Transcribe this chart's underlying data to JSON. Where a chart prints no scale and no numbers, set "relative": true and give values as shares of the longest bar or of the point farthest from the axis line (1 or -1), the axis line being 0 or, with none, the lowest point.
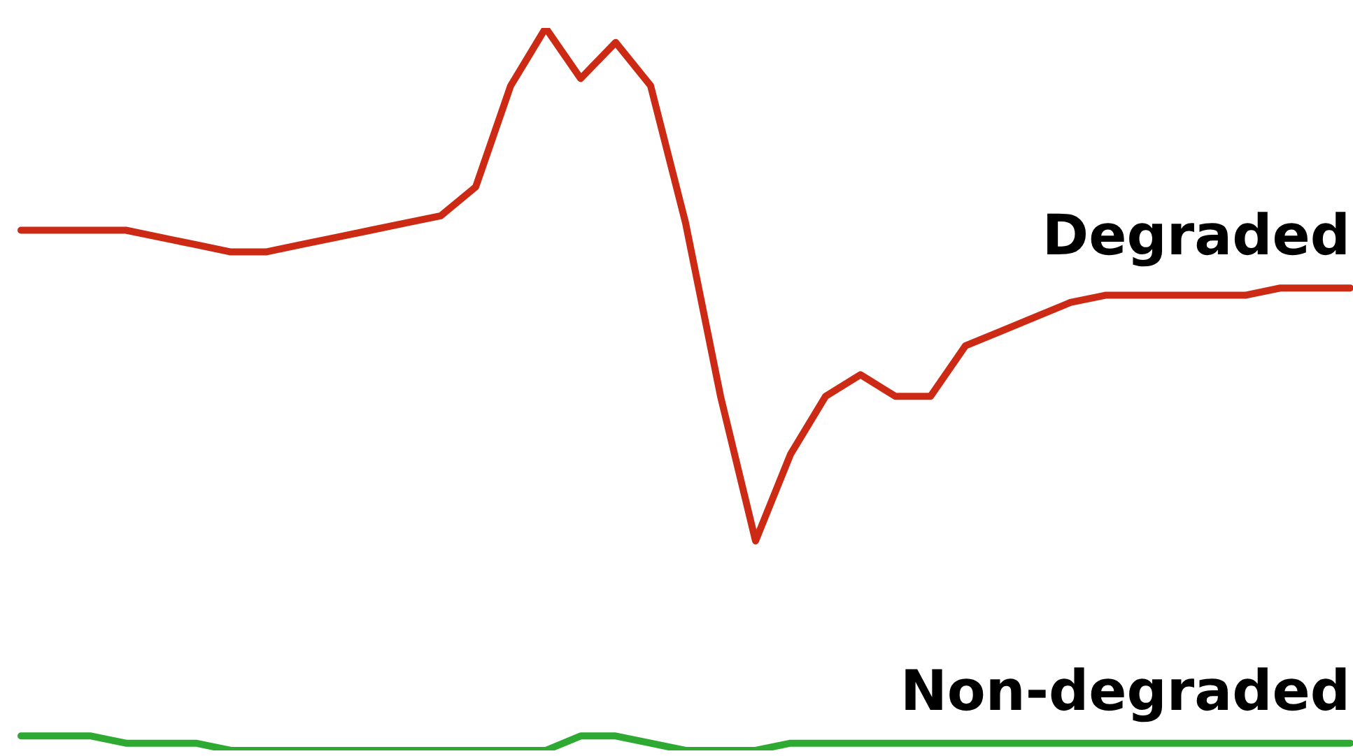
{
  "chart_data": {
    "type": "line",
    "relative": true,
    "legend": false,
    "marker": "none",
    "line_style": "solid",
    "categories": [
      null,
      null,
      null,
      null,
      null,
      null,
      null,
      null,
      null,
      null,
      null,
      null,
      null,
      null,
      null,
      null,
      null,
      null,
      null,
      null,
      null,
      null,
      null,
      null,
      null,
      null,
      null,
      null,
      null,
      null,
      null,
      null,
      null,
      null,
      null,
      null,
      null,
      null,
      null
    ],
    "series": [
      {
        "name": "Degraded",
        "color": "#cc2a14",
        "values": [
          0.72,
          0.72,
          0.72,
          0.72,
          0.71,
          0.7,
          0.69,
          0.69,
          0.7,
          0.71,
          0.72,
          0.73,
          0.74,
          0.78,
          0.92,
          1.0,
          0.93,
          0.98,
          0.92,
          0.73,
          0.49,
          0.29,
          0.41,
          0.49,
          0.52,
          0.49,
          0.49,
          0.56,
          0.58,
          0.6,
          0.62,
          0.63,
          0.63,
          0.63,
          0.63,
          0.63,
          0.64,
          0.64,
          0.64
        ]
      },
      {
        "name": "Non-degraded",
        "color": "#2eaa33",
        "values": [
          0.02,
          0.02,
          0.02,
          0.01,
          0.01,
          0.01,
          0,
          0,
          0,
          0,
          0,
          0,
          0,
          0,
          0,
          0,
          0.02,
          0.02,
          0.01,
          0,
          0,
          0,
          0.01,
          0.01,
          0.01,
          0.01,
          0.01,
          0.01,
          0.01,
          0.01,
          0.01,
          0.01,
          0.01,
          0.01,
          0.01,
          0.01,
          0.01,
          0.01,
          0.01
        ]
      }
    ]
  }
}
